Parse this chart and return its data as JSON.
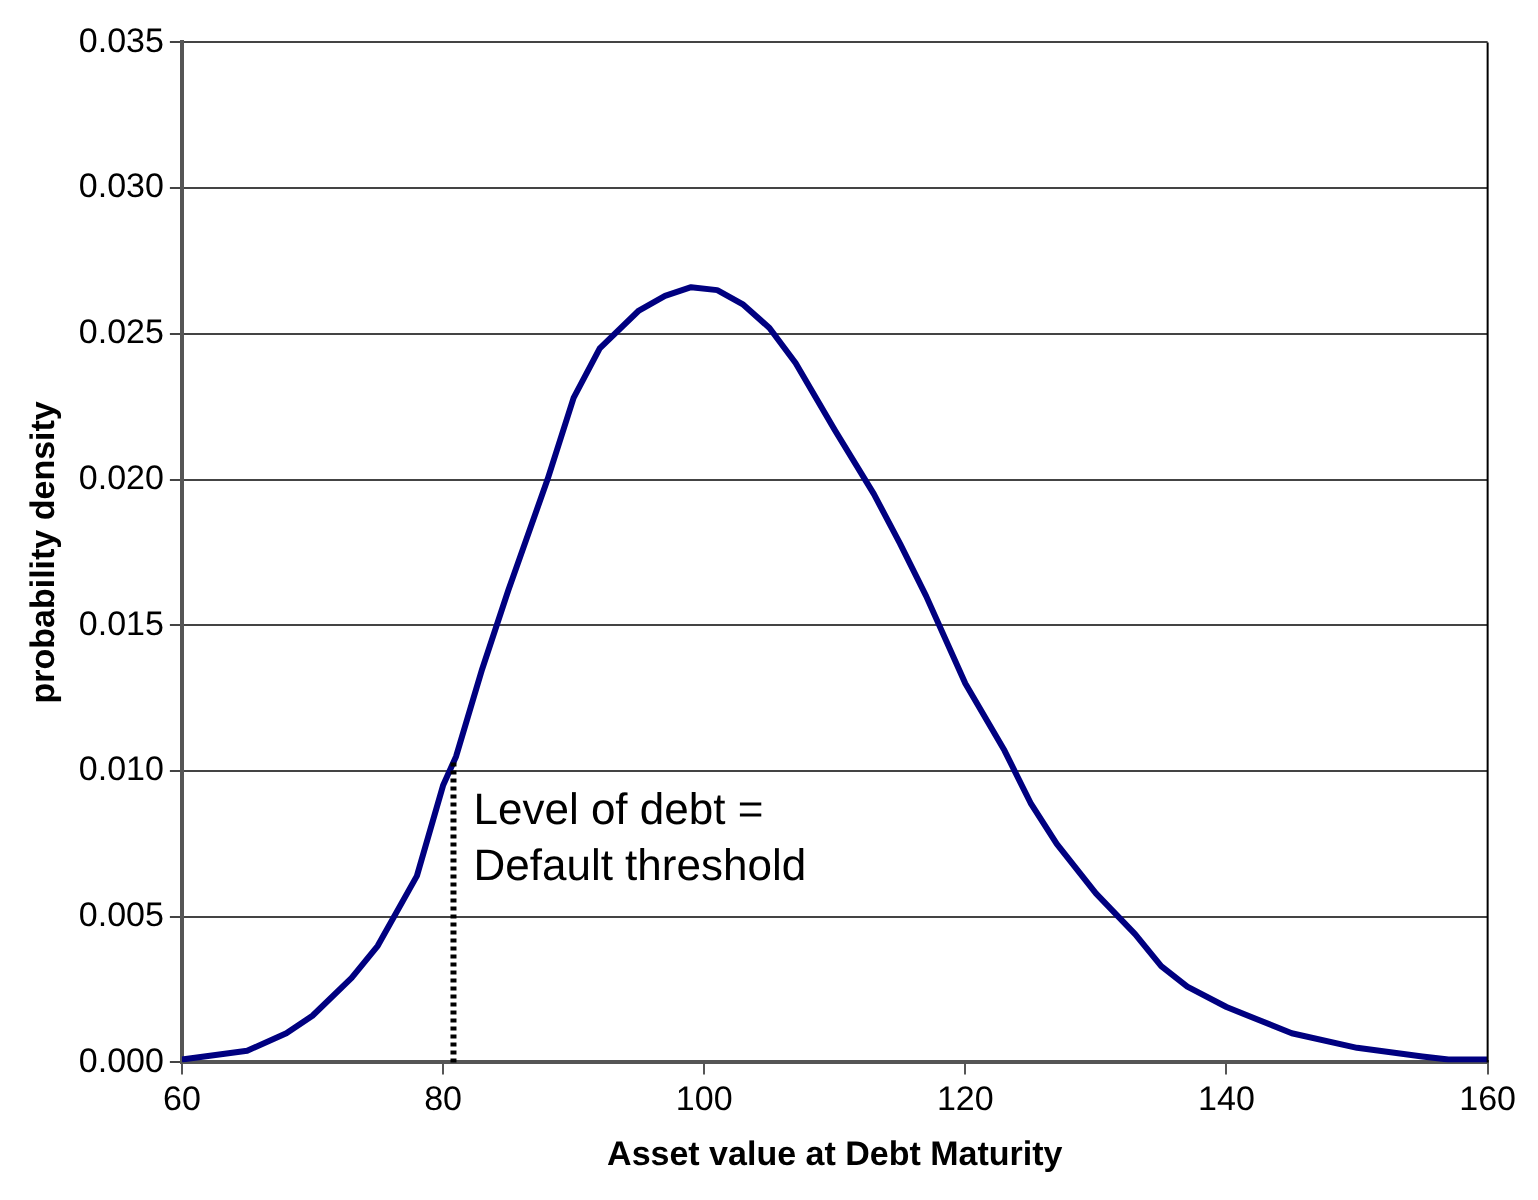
{
  "chart_data": {
    "type": "line",
    "xlabel": "Asset value at Debt Maturity",
    "ylabel": "probability density",
    "x": [
      60,
      65,
      68,
      70,
      73,
      75,
      78,
      80,
      81,
      83,
      85,
      88,
      90,
      92,
      95,
      97,
      99,
      101,
      103,
      105,
      107,
      110,
      113,
      115,
      117,
      120,
      123,
      125,
      127,
      130,
      133,
      135,
      137,
      140,
      145,
      150,
      155,
      157,
      160
    ],
    "series": [
      {
        "color": "#000080",
        "values": [
          0.0001,
          0.0004,
          0.001,
          0.0016,
          0.0029,
          0.004,
          0.0064,
          0.0095,
          0.0105,
          0.0135,
          0.0162,
          0.02,
          0.0228,
          0.0245,
          0.0258,
          0.0263,
          0.0266,
          0.0265,
          0.026,
          0.0252,
          0.024,
          0.0217,
          0.0195,
          0.0178,
          0.016,
          0.013,
          0.0107,
          0.0089,
          0.0075,
          0.0058,
          0.0044,
          0.0033,
          0.0026,
          0.0019,
          0.001,
          0.0005,
          0.0002,
          0.0001,
          0.0001
        ]
      }
    ],
    "xlim": [
      60,
      160
    ],
    "xticks": [
      60,
      80,
      100,
      120,
      140,
      160
    ],
    "ylim": [
      0,
      0.035
    ],
    "yticks": [
      {
        "value": 0,
        "label": "0.000"
      },
      0.005,
      {
        "value": 0.01,
        "label": "0.010"
      },
      0.015,
      {
        "value": 0.02,
        "label": "0.020"
      },
      0.025,
      {
        "value": 0.03,
        "label": "0.030"
      },
      0.035
    ],
    "ref_lines": [
      {
        "axis": "x",
        "value": 80.8,
        "label": "Level of debt = Default threshold",
        "line_style": "dotted",
        "color": "#000000"
      }
    ],
    "grid": "y",
    "legend": false,
    "marker": "none",
    "line_style": "solid"
  }
}
